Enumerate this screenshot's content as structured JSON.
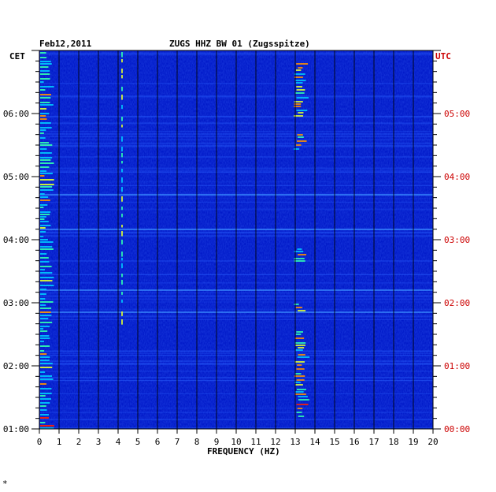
{
  "chart_data": {
    "type": "heatmap",
    "title": "ZUGS HHZ BW 01 (Zugsspitze)",
    "date": "Feb12,2011",
    "xlabel": "FREQUENCY (HZ)",
    "left_axis_label": "CET",
    "right_axis_label": "UTC",
    "xlim": [
      0,
      20
    ],
    "x_ticks": [
      "0",
      "1",
      "2",
      "3",
      "4",
      "5",
      "6",
      "7",
      "8",
      "9",
      "10",
      "11",
      "12",
      "13",
      "14",
      "15",
      "16",
      "17",
      "18",
      "19",
      "20"
    ],
    "left_time_labels": [
      "06:00",
      "05:00",
      "04:00",
      "03:00",
      "02:00",
      "01:00"
    ],
    "right_time_labels": [
      "05:00",
      "04:00",
      "03:00",
      "02:00",
      "01:00",
      "00:00"
    ],
    "time_range_utc": [
      "00:00",
      "06:00"
    ],
    "colors": {
      "background": "#0018c8",
      "grid": "#000000",
      "utc_label": "#cc0000",
      "hotspot": [
        "#00c8ff",
        "#30ffb0",
        "#e0ff30",
        "#ff9000",
        "#ff2000"
      ]
    }
  },
  "footer_mark": "*"
}
